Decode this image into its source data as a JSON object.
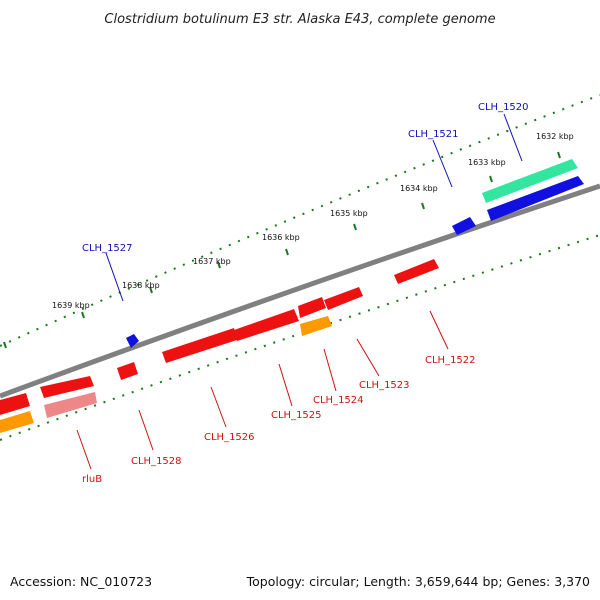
{
  "title": "Clostridium botulinum E3 str. Alaska E43, complete genome",
  "footer": {
    "accession": "Accession: NC_010723",
    "summary": "Topology: circular; Length: 3,659,644 bp; Genes: 3,370"
  },
  "colors": {
    "backbone": "#808080",
    "tick": "#1a7a1a",
    "label_forward": "#1010b0",
    "label_reverse": "#d01010",
    "gene_blue": "#1010e0",
    "gene_teal": "#33e6a0",
    "gene_red": "#ee1111",
    "gene_pink": "#ee8888",
    "gene_orange": "#ff9900"
  },
  "tick_labels": [
    "1632 kbp",
    "1633 kbp",
    "1634 kbp",
    "1635 kbp",
    "1636 kbp",
    "1637 kbp",
    "1638 kbp",
    "1639 kbp"
  ],
  "gene_labels": {
    "CLH_1520": "CLH_1520",
    "CLH_1521": "CLH_1521",
    "CLH_1527": "CLH_1527",
    "CLH_1522": "CLH_1522",
    "CLH_1523": "CLH_1523",
    "CLH_1524": "CLH_1524",
    "CLH_1525": "CLH_1525",
    "CLH_1526": "CLH_1526",
    "CLH_1528": "CLH_1528",
    "rluB": "rluB"
  }
}
